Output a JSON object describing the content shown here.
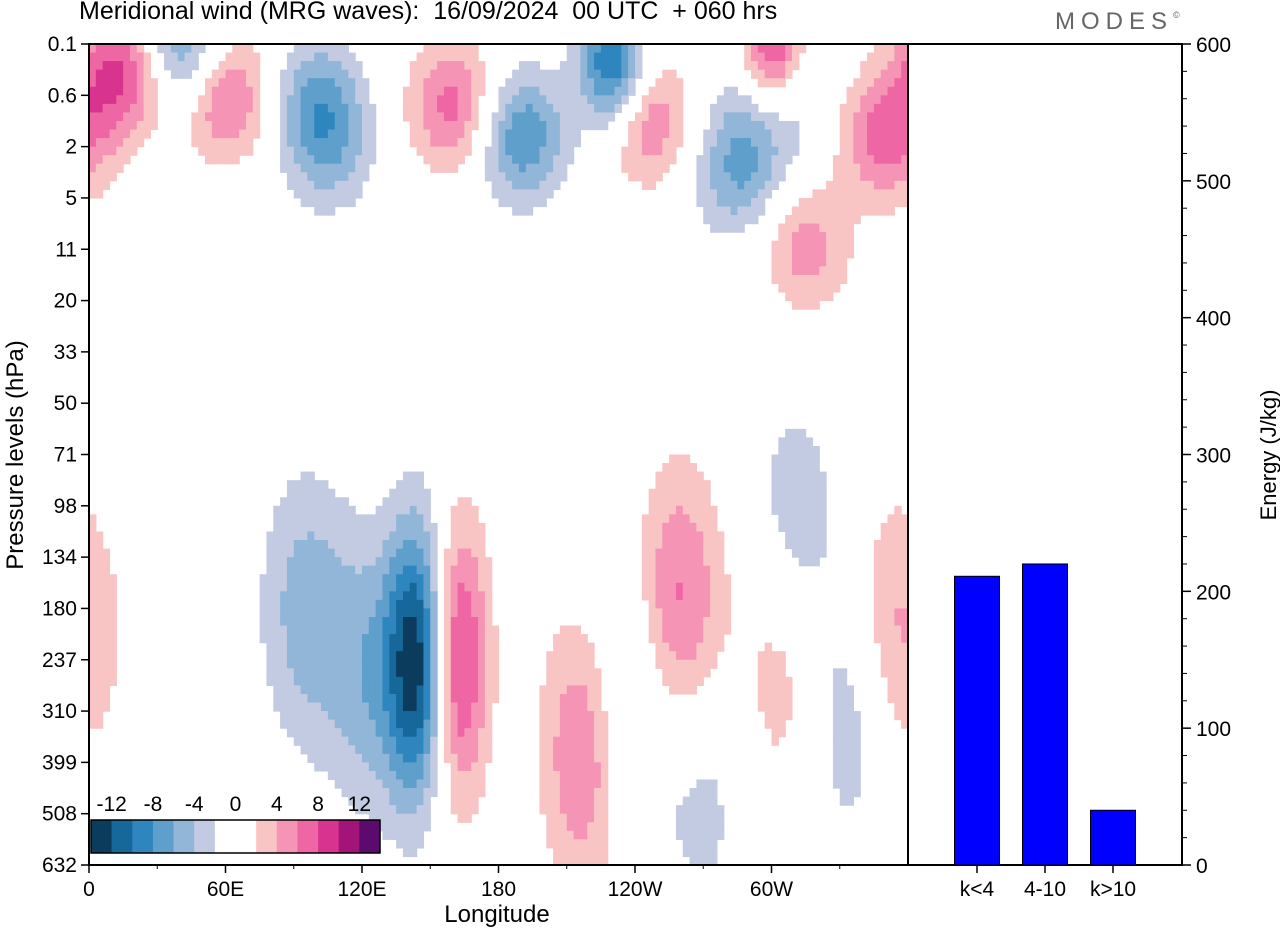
{
  "header": {
    "title": "Meridional wind (MRG waves):  16/09/2024  00 UTC  + 060 hrs",
    "brand": "MODES",
    "brand_mark": "©"
  },
  "chart_data": [
    {
      "type": "heatmap",
      "title": "Meridional wind (MRG waves):  16/09/2024  00 UTC  + 060 hrs",
      "xlabel": "Longitude",
      "ylabel": "Pressure levels (hPa)",
      "x_ticks": [
        "0",
        "60E",
        "120E",
        "180",
        "120W",
        "60W"
      ],
      "y_ticks": [
        "0.1",
        "0.6",
        "2",
        "5",
        "11",
        "20",
        "33",
        "50",
        "71",
        "98",
        "134",
        "180",
        "237",
        "310",
        "399",
        "508",
        "632"
      ],
      "colorbar": {
        "labels": [
          "-12",
          "-8",
          "-4",
          "0",
          "4",
          "8",
          "12"
        ],
        "levels": [
          -14,
          -12,
          -10,
          -8,
          -6,
          -4,
          -2,
          0,
          2,
          4,
          6,
          8,
          10,
          12,
          14
        ],
        "colors": [
          "#0b3c5d",
          "#16679a",
          "#2f86bf",
          "#5e9fcb",
          "#91b6d8",
          "#c3cbe2",
          "#ffffff",
          "#ffffff",
          "#f9c4c4",
          "#f594b5",
          "#ee66a3",
          "#d8338e",
          "#a31478",
          "#5b0a6d"
        ]
      },
      "features": [
        {
          "kind": "neg",
          "lon": 146,
          "level": 12,
          "amp": 15
        },
        {
          "kind": "pos",
          "lon": 160,
          "level": 12,
          "amp": 12
        },
        {
          "kind": "pos",
          "lon": 220,
          "level": 13.7,
          "amp": 8
        },
        {
          "kind": "neg",
          "lon": 235,
          "level": 13,
          "amp": 6
        },
        {
          "kind": "pos",
          "lon": 259,
          "level": 11,
          "amp": 7
        },
        {
          "kind": "neg",
          "lon": 95,
          "level": 11,
          "amp": 5
        },
        {
          "kind": "neg",
          "lon": 124,
          "level": 12.3,
          "amp": 5
        },
        {
          "kind": "neg",
          "lon": 270,
          "level": 14.5,
          "amp": 3
        },
        {
          "kind": "pos",
          "lon": 305,
          "level": 12,
          "amp": 4
        },
        {
          "kind": "neg",
          "lon": 310,
          "level": 9.5,
          "amp": 4
        },
        {
          "kind": "neg",
          "lon": 335,
          "level": 13,
          "amp": 4
        },
        {
          "kind": "pos",
          "lon": 354,
          "level": 11.5,
          "amp": 5
        },
        {
          "kind": "pos",
          "lon": 15,
          "level": 0.5,
          "amp": 9
        },
        {
          "kind": "neg",
          "lon": 40,
          "level": 0,
          "amp": 8
        },
        {
          "kind": "pos",
          "lon": 60,
          "level": 1,
          "amp": 7
        },
        {
          "kind": "neg",
          "lon": 100,
          "level": 1,
          "amp": 5
        },
        {
          "kind": "pos",
          "lon": 160,
          "level": 1.2,
          "amp": 7
        },
        {
          "kind": "neg",
          "lon": 230,
          "level": 0.4,
          "amp": 11
        },
        {
          "kind": "neg",
          "lon": 190,
          "level": 1.8,
          "amp": 8
        },
        {
          "kind": "pos",
          "lon": 300,
          "level": 0.3,
          "amp": 12
        },
        {
          "kind": "neg",
          "lon": 300,
          "level": 1,
          "amp": 7
        },
        {
          "kind": "pos",
          "lon": 245,
          "level": 1.5,
          "amp": 6
        },
        {
          "kind": "neg",
          "lon": 285,
          "level": 2.5,
          "amp": 6
        },
        {
          "kind": "pos",
          "lon": 350,
          "level": 1.8,
          "amp": 7
        },
        {
          "kind": "pos",
          "lon": 315,
          "level": 4,
          "amp": 5
        },
        {
          "kind": "neg",
          "lon": 105,
          "level": 2,
          "amp": 5
        }
      ]
    },
    {
      "type": "bar",
      "categories": [
        "k<4",
        "4-10",
        "k>10"
      ],
      "values": [
        211,
        220,
        40
      ],
      "ylabel": "Energy (J/kg)",
      "ylim": [
        0,
        600
      ],
      "y_ticks": [
        "0",
        "100",
        "200",
        "300",
        "400",
        "500",
        "600"
      ],
      "color": "#0000ff"
    }
  ]
}
